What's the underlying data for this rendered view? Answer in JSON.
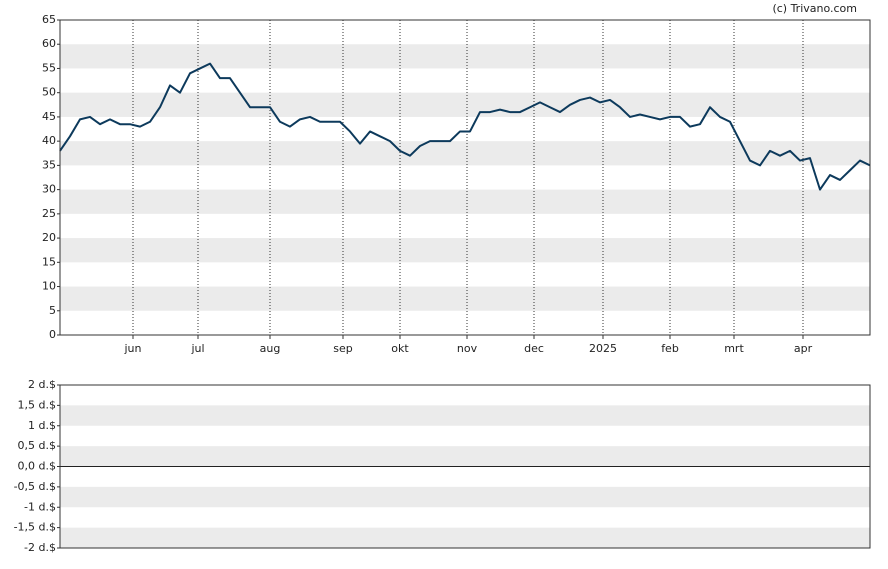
{
  "chart_data": [
    {
      "type": "line",
      "source": "(c) Trivano.com",
      "color": "#0d3a5c",
      "grid": true,
      "bands": true,
      "xlim": [
        0,
        81
      ],
      "xticks": [
        {
          "value": 7.3,
          "label": "jun"
        },
        {
          "value": 13.8,
          "label": "jul"
        },
        {
          "value": 21,
          "label": "aug"
        },
        {
          "value": 28.3,
          "label": "sep"
        },
        {
          "value": 34,
          "label": "okt"
        },
        {
          "value": 40.7,
          "label": "nov"
        },
        {
          "value": 47.4,
          "label": "dec"
        },
        {
          "value": 54.3,
          "label": "2025"
        },
        {
          "value": 61,
          "label": "feb"
        },
        {
          "value": 67.4,
          "label": "mrt"
        },
        {
          "value": 74.3,
          "label": "apr"
        }
      ],
      "ylim": [
        0,
        65
      ],
      "yticks": [
        0,
        5,
        10,
        15,
        20,
        25,
        30,
        35,
        40,
        45,
        50,
        55,
        60,
        65
      ],
      "values": [
        38,
        41,
        44.5,
        45,
        43.5,
        44.5,
        43.5,
        43.5,
        43,
        44,
        47,
        51.5,
        50,
        54,
        55,
        56,
        53,
        53,
        50,
        47,
        47,
        47,
        44,
        43,
        44.5,
        45,
        44,
        44,
        44,
        42,
        39.5,
        42,
        41,
        40,
        38,
        37,
        39,
        40,
        40,
        40,
        42,
        42,
        46,
        46,
        46.5,
        46,
        46,
        47,
        48,
        47,
        46,
        47.5,
        48.5,
        49,
        48,
        48.5,
        47,
        45,
        45.5,
        45,
        44.5,
        45,
        45,
        43,
        43.5,
        47,
        45,
        44,
        40,
        36,
        35,
        38,
        37,
        38,
        36,
        36.5,
        30,
        33,
        32,
        34,
        36,
        35
      ]
    },
    {
      "type": "line",
      "bands": true,
      "ylim": [
        -2,
        2
      ],
      "yticks": [
        {
          "value": -2,
          "label": "-2 d.$"
        },
        {
          "value": -1.5,
          "label": "-1,5 d.$"
        },
        {
          "value": -1,
          "label": "-1 d.$"
        },
        {
          "value": -0.5,
          "label": "-0,5 d.$"
        },
        {
          "value": 0,
          "label": "0,0 d.$"
        },
        {
          "value": 0.5,
          "label": "0,5 d.$"
        },
        {
          "value": 1,
          "label": "1 d.$"
        },
        {
          "value": 1.5,
          "label": "1,5 d.$"
        },
        {
          "value": 2,
          "label": "2 d.$"
        }
      ]
    }
  ]
}
